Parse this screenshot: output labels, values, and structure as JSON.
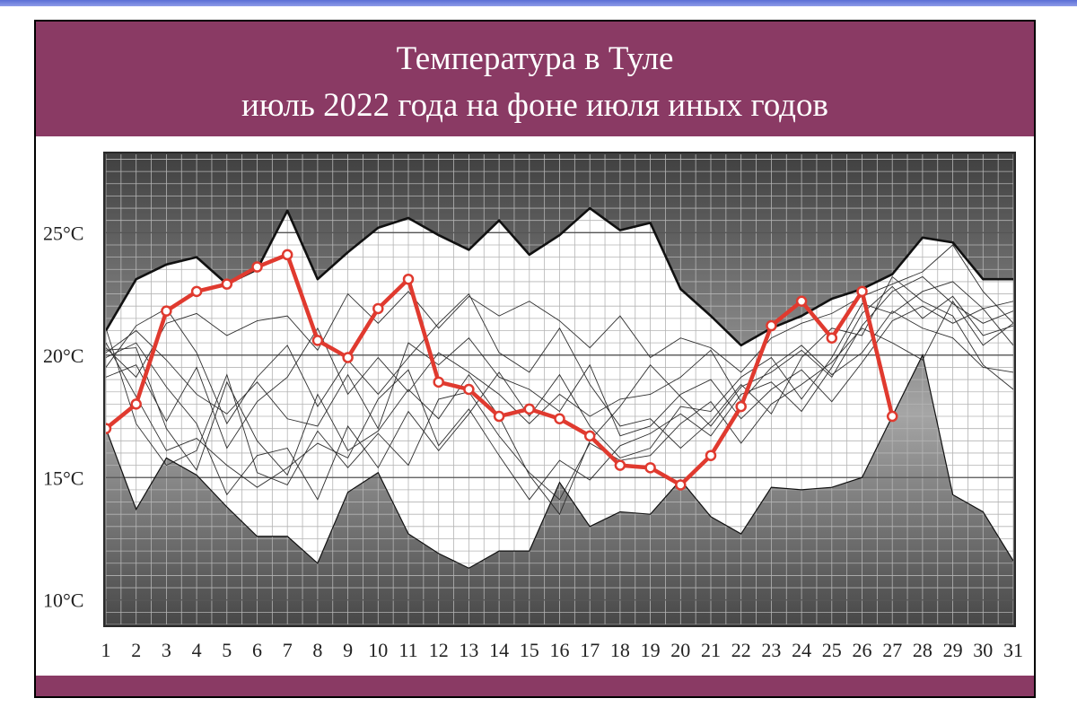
{
  "title_line1": "Температура в Туле",
  "title_line2": "июль 2022 года на фоне июля иных годов",
  "colors": {
    "header": "#8a3a64",
    "current_year_line": "#e03a2f",
    "envelope_fill": "#ffffff",
    "background_dark": "#3c3c3c"
  },
  "chart_data": {
    "type": "line",
    "title": "Температура в Туле июль 2022 года на фоне июля иных годов",
    "x_ticks": [
      1,
      2,
      3,
      4,
      5,
      6,
      7,
      8,
      9,
      10,
      11,
      12,
      13,
      14,
      15,
      16,
      17,
      18,
      19,
      20,
      21,
      22,
      23,
      24,
      25,
      26,
      27,
      28,
      29,
      30,
      31
    ],
    "y_ticks": [
      {
        "value": 10,
        "label": "10°C"
      },
      {
        "value": 15,
        "label": "15°C"
      },
      {
        "value": 20,
        "label": "20°C"
      },
      {
        "value": 25,
        "label": "25°C"
      }
    ],
    "ylim": [
      9,
      28.2
    ],
    "xlim": [
      1,
      31
    ],
    "grid": true,
    "series": [
      {
        "values": [
          17.0,
          18.0,
          21.8,
          22.6,
          22.9,
          23.6,
          24.1,
          20.6,
          19.9,
          21.9,
          23.1,
          18.9,
          18.6,
          17.5,
          17.8,
          17.4,
          16.7,
          15.5,
          15.4,
          14.7,
          15.9,
          17.9,
          21.2,
          22.2,
          20.7,
          22.6,
          17.5
        ]
      }
    ],
    "envelope": {
      "max": [
        21.0,
        23.1,
        23.7,
        24.0,
        22.9,
        23.5,
        25.9,
        23.1,
        24.2,
        25.2,
        25.6,
        24.9,
        24.3,
        25.5,
        24.1,
        24.9,
        26.0,
        25.1,
        25.4,
        22.7,
        21.6,
        20.4,
        21.1,
        21.6,
        22.3,
        22.7,
        23.3,
        24.8,
        24.6,
        23.1,
        23.1
      ],
      "min": [
        17.0,
        13.7,
        15.8,
        15.1,
        13.8,
        12.6,
        12.6,
        11.5,
        14.4,
        15.2,
        12.7,
        11.9,
        11.3,
        12.0,
        12.0,
        14.8,
        13.0,
        13.6,
        13.5,
        14.9,
        13.4,
        12.7,
        14.6,
        14.5,
        14.6,
        15.0,
        17.5,
        20.0,
        14.3,
        13.6,
        11.6
      ]
    },
    "other_years": [
      [
        20.2,
        20.3,
        17.0,
        15.3,
        18.9,
        16.5,
        15.1,
        18.4,
        16.1,
        16.9,
        18.6,
        17.4,
        19.2,
        17.5,
        15.1,
        13.5,
        16.5,
        17.9,
        19.6,
        18.3,
        17.1,
        18.7,
        19.3,
        20.2,
        19.1,
        21.2,
        22.6,
        23.2,
        22.1,
        21.3,
        21.8
      ],
      [
        19.5,
        21.2,
        21.9,
        20.1,
        17.2,
        19.1,
        20.4,
        17.9,
        19.8,
        18.4,
        19.9,
        21.3,
        22.5,
        20.1,
        19.3,
        21.1,
        18.8,
        17.1,
        17.4,
        16.2,
        17.3,
        18.8,
        17.6,
        19.9,
        21.1,
        20.8,
        23.2,
        22.2,
        21.6,
        19.6,
        18.6
      ],
      [
        21.1,
        17.2,
        15.5,
        16.1,
        19.2,
        15.2,
        14.7,
        16.9,
        15.4,
        16.8,
        15.5,
        18.2,
        18.5,
        16.7,
        15.2,
        14.1,
        16.4,
        15.7,
        15.9,
        17.2,
        18.1,
        16.4,
        18.0,
        18.8,
        19.7,
        21.1,
        20.5,
        19.8,
        22.2,
        20.4,
        21.3
      ],
      [
        19.9,
        20.5,
        18.7,
        17.2,
        14.3,
        15.9,
        16.2,
        14.1,
        17.1,
        15.4,
        17.7,
        16.1,
        17.6,
        19.3,
        17.5,
        19.2,
        17.1,
        15.8,
        16.2,
        17.9,
        17.7,
        19.1,
        19.9,
        18.2,
        19.9,
        22.1,
        21.7,
        22.6,
        23.0,
        21.9,
        22.2
      ],
      [
        19.1,
        19.6,
        17.3,
        19.5,
        16.2,
        18.1,
        19.1,
        21.1,
        18.4,
        19.9,
        18.5,
        20.1,
        19.3,
        18.4,
        17.2,
        18.4,
        17.5,
        18.2,
        18.4,
        19.1,
        20.2,
        18.1,
        19.5,
        20.4,
        19.2,
        20.1,
        21.8,
        21.1,
        20.7,
        19.5,
        19.3
      ],
      [
        20.5,
        18.3,
        16.1,
        16.6,
        15.5,
        14.6,
        15.4,
        16.4,
        15.8,
        18.2,
        19.4,
        16.3,
        17.8,
        15.9,
        14.1,
        15.7,
        14.9,
        16.3,
        16.8,
        17.6,
        16.7,
        18.4,
        18.9,
        17.7,
        19.5,
        21.7,
        22.8,
        21.5,
        22.4,
        20.8,
        21.2
      ],
      [
        20.1,
        21.0,
        19.8,
        18.4,
        17.6,
        18.9,
        17.4,
        17.1,
        19.2,
        17.0,
        20.5,
        19.6,
        20.7,
        19.1,
        18.6,
        17.7,
        19.6,
        16.7,
        17.1,
        18.4,
        19.0,
        17.4,
        18.6,
        19.4,
        18.1,
        19.7,
        21.4,
        22.0,
        21.3,
        21.9,
        20.4
      ],
      [
        20.3,
        19.1,
        21.3,
        21.7,
        20.8,
        21.4,
        21.6,
        20.2,
        22.5,
        21.3,
        22.6,
        21.1,
        22.4,
        21.6,
        22.2,
        21.4,
        20.3,
        21.6,
        19.9,
        20.7,
        20.3,
        19.3,
        20.7,
        21.3,
        21.7,
        22.4,
        22.9,
        23.4,
        24.5,
        22.6,
        21.3
      ]
    ]
  }
}
